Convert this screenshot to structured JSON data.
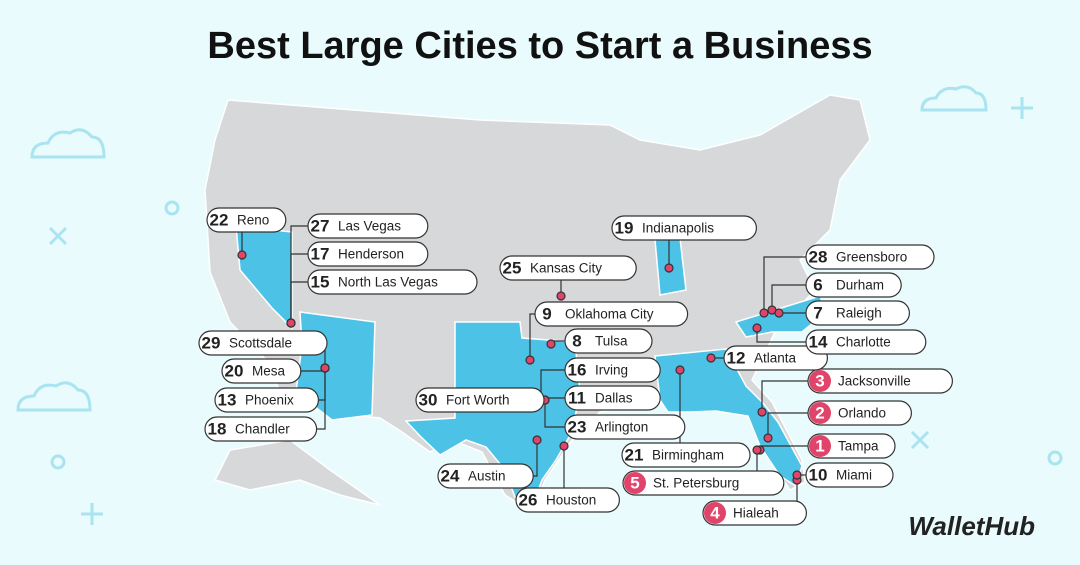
{
  "title": "Best Large Cities to Start a Business",
  "cities": [
    {
      "rank": 1,
      "name": "Tampa"
    },
    {
      "rank": 2,
      "name": "Orlando"
    },
    {
      "rank": 3,
      "name": "Jacksonville"
    },
    {
      "rank": 4,
      "name": "Hialeah"
    },
    {
      "rank": 5,
      "name": "St. Petersburg"
    },
    {
      "rank": 6,
      "name": "Durham"
    },
    {
      "rank": 7,
      "name": "Raleigh"
    },
    {
      "rank": 8,
      "name": "Tulsa"
    },
    {
      "rank": 9,
      "name": "Oklahoma City"
    },
    {
      "rank": 10,
      "name": "Miami"
    },
    {
      "rank": 11,
      "name": "Dallas"
    },
    {
      "rank": 12,
      "name": "Atlanta"
    },
    {
      "rank": 13,
      "name": "Phoenix"
    },
    {
      "rank": 14,
      "name": "Charlotte"
    },
    {
      "rank": 15,
      "name": "North Las Vegas"
    },
    {
      "rank": 16,
      "name": "Irving"
    },
    {
      "rank": 17,
      "name": "Henderson"
    },
    {
      "rank": 18,
      "name": "Chandler"
    },
    {
      "rank": 19,
      "name": "Indianapolis"
    },
    {
      "rank": 20,
      "name": "Mesa"
    },
    {
      "rank": 21,
      "name": "Birmingham"
    },
    {
      "rank": 22,
      "name": "Reno"
    },
    {
      "rank": 23,
      "name": "Arlington"
    },
    {
      "rank": 24,
      "name": "Austin"
    },
    {
      "rank": 25,
      "name": "Kansas City"
    },
    {
      "rank": 26,
      "name": "Houston"
    },
    {
      "rank": 27,
      "name": "Las Vegas"
    },
    {
      "rank": 28,
      "name": "Greensboro"
    },
    {
      "rank": 29,
      "name": "Scottsdale"
    },
    {
      "rank": 30,
      "name": "Fort Worth"
    }
  ],
  "brand": "WalletHub"
}
